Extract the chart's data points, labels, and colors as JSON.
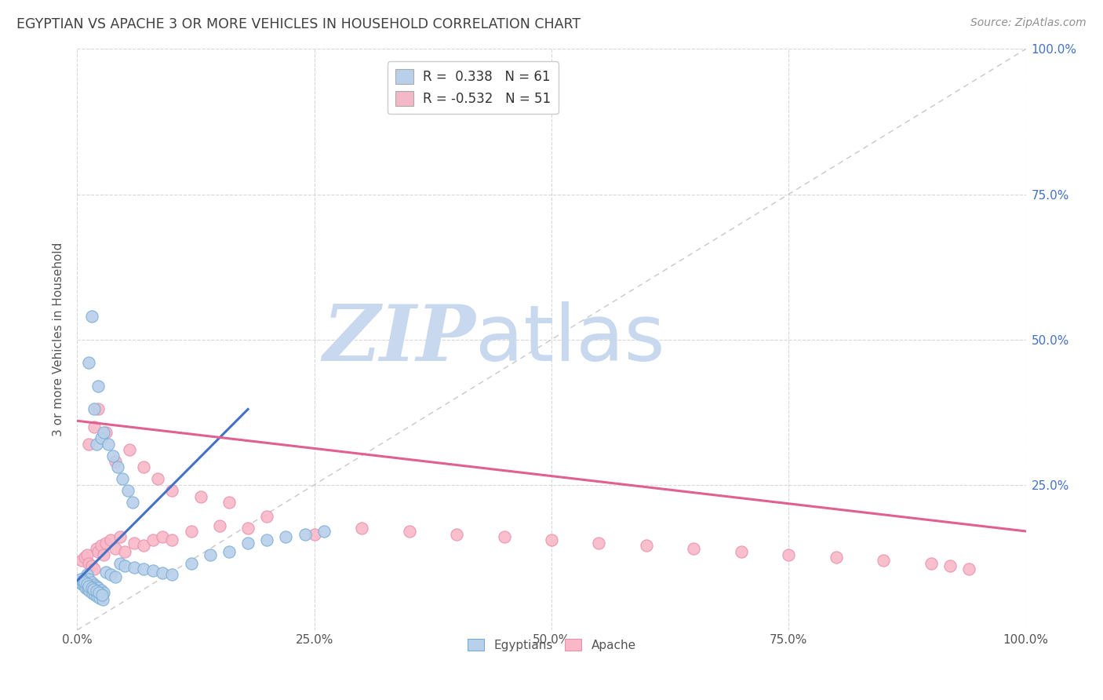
{
  "title": "EGYPTIAN VS APACHE 3 OR MORE VEHICLES IN HOUSEHOLD CORRELATION CHART",
  "source": "Source: ZipAtlas.com",
  "ylabel": "3 or more Vehicles in Household",
  "xlim": [
    0.0,
    1.0
  ],
  "ylim": [
    0.0,
    1.0
  ],
  "xtick_positions": [
    0.0,
    0.25,
    0.5,
    0.75,
    1.0
  ],
  "xtick_labels": [
    "0.0%",
    "25.0%",
    "50.0%",
    "75.0%",
    "100.0%"
  ],
  "ytick_positions": [
    0.25,
    0.5,
    0.75,
    1.0
  ],
  "ytick_labels": [
    "25.0%",
    "50.0%",
    "75.0%",
    "100.0%"
  ],
  "legend_label1": "R =  0.338   N = 61",
  "legend_label2": "R = -0.532   N = 51",
  "legend_color1": "#b8d0ea",
  "legend_color2": "#f4b8c8",
  "scatter_color1": "#b8d0ea",
  "scatter_color2": "#f9b8c8",
  "scatter_edge1": "#7aaed6",
  "scatter_edge2": "#e890b0",
  "line_color1": "#4472c4",
  "line_color2": "#e06090",
  "diagonal_color": "#c8c8c8",
  "watermark_zip_color": "#c8d8ee",
  "watermark_atlas_color": "#c8d8ee",
  "background_color": "#ffffff",
  "grid_color": "#d8d8d8",
  "title_color": "#404040",
  "source_color": "#909090",
  "right_tick_color": "#4472c4",
  "egyptian_x": [
    0.005,
    0.008,
    0.01,
    0.012,
    0.015,
    0.018,
    0.02,
    0.022,
    0.025,
    0.028,
    0.005,
    0.007,
    0.009,
    0.011,
    0.013,
    0.016,
    0.019,
    0.021,
    0.024,
    0.027,
    0.004,
    0.006,
    0.008,
    0.01,
    0.012,
    0.015,
    0.017,
    0.02,
    0.023,
    0.026,
    0.03,
    0.035,
    0.04,
    0.045,
    0.05,
    0.06,
    0.07,
    0.08,
    0.09,
    0.1,
    0.12,
    0.14,
    0.16,
    0.18,
    0.2,
    0.22,
    0.24,
    0.26,
    0.02,
    0.025,
    0.018,
    0.022,
    0.012,
    0.015,
    0.028,
    0.033,
    0.038,
    0.043,
    0.048,
    0.053,
    0.058
  ],
  "egyptian_y": [
    0.085,
    0.09,
    0.095,
    0.088,
    0.082,
    0.078,
    0.075,
    0.072,
    0.068,
    0.065,
    0.08,
    0.077,
    0.073,
    0.07,
    0.067,
    0.063,
    0.06,
    0.058,
    0.055,
    0.052,
    0.088,
    0.085,
    0.082,
    0.079,
    0.076,
    0.073,
    0.07,
    0.067,
    0.064,
    0.061,
    0.1,
    0.095,
    0.092,
    0.115,
    0.11,
    0.108,
    0.105,
    0.102,
    0.098,
    0.095,
    0.115,
    0.13,
    0.135,
    0.15,
    0.155,
    0.16,
    0.165,
    0.17,
    0.32,
    0.33,
    0.38,
    0.42,
    0.46,
    0.54,
    0.34,
    0.32,
    0.3,
    0.28,
    0.26,
    0.24,
    0.22
  ],
  "apache_x": [
    0.005,
    0.008,
    0.01,
    0.012,
    0.015,
    0.018,
    0.02,
    0.022,
    0.025,
    0.028,
    0.03,
    0.035,
    0.04,
    0.045,
    0.05,
    0.06,
    0.07,
    0.08,
    0.09,
    0.1,
    0.12,
    0.15,
    0.18,
    0.2,
    0.25,
    0.3,
    0.35,
    0.4,
    0.45,
    0.5,
    0.55,
    0.6,
    0.65,
    0.7,
    0.75,
    0.8,
    0.85,
    0.9,
    0.92,
    0.94,
    0.012,
    0.018,
    0.022,
    0.03,
    0.04,
    0.055,
    0.07,
    0.085,
    0.1,
    0.13,
    0.16
  ],
  "apache_y": [
    0.12,
    0.125,
    0.13,
    0.115,
    0.11,
    0.105,
    0.14,
    0.135,
    0.145,
    0.13,
    0.15,
    0.155,
    0.14,
    0.16,
    0.135,
    0.15,
    0.145,
    0.155,
    0.16,
    0.155,
    0.17,
    0.18,
    0.175,
    0.195,
    0.165,
    0.175,
    0.17,
    0.165,
    0.16,
    0.155,
    0.15,
    0.145,
    0.14,
    0.135,
    0.13,
    0.125,
    0.12,
    0.115,
    0.11,
    0.105,
    0.32,
    0.35,
    0.38,
    0.34,
    0.29,
    0.31,
    0.28,
    0.26,
    0.24,
    0.23,
    0.22
  ],
  "blue_line_x": [
    0.0,
    0.18
  ],
  "blue_line_y": [
    0.085,
    0.38
  ],
  "pink_line_x": [
    0.0,
    1.0
  ],
  "pink_line_y": [
    0.36,
    0.17
  ]
}
